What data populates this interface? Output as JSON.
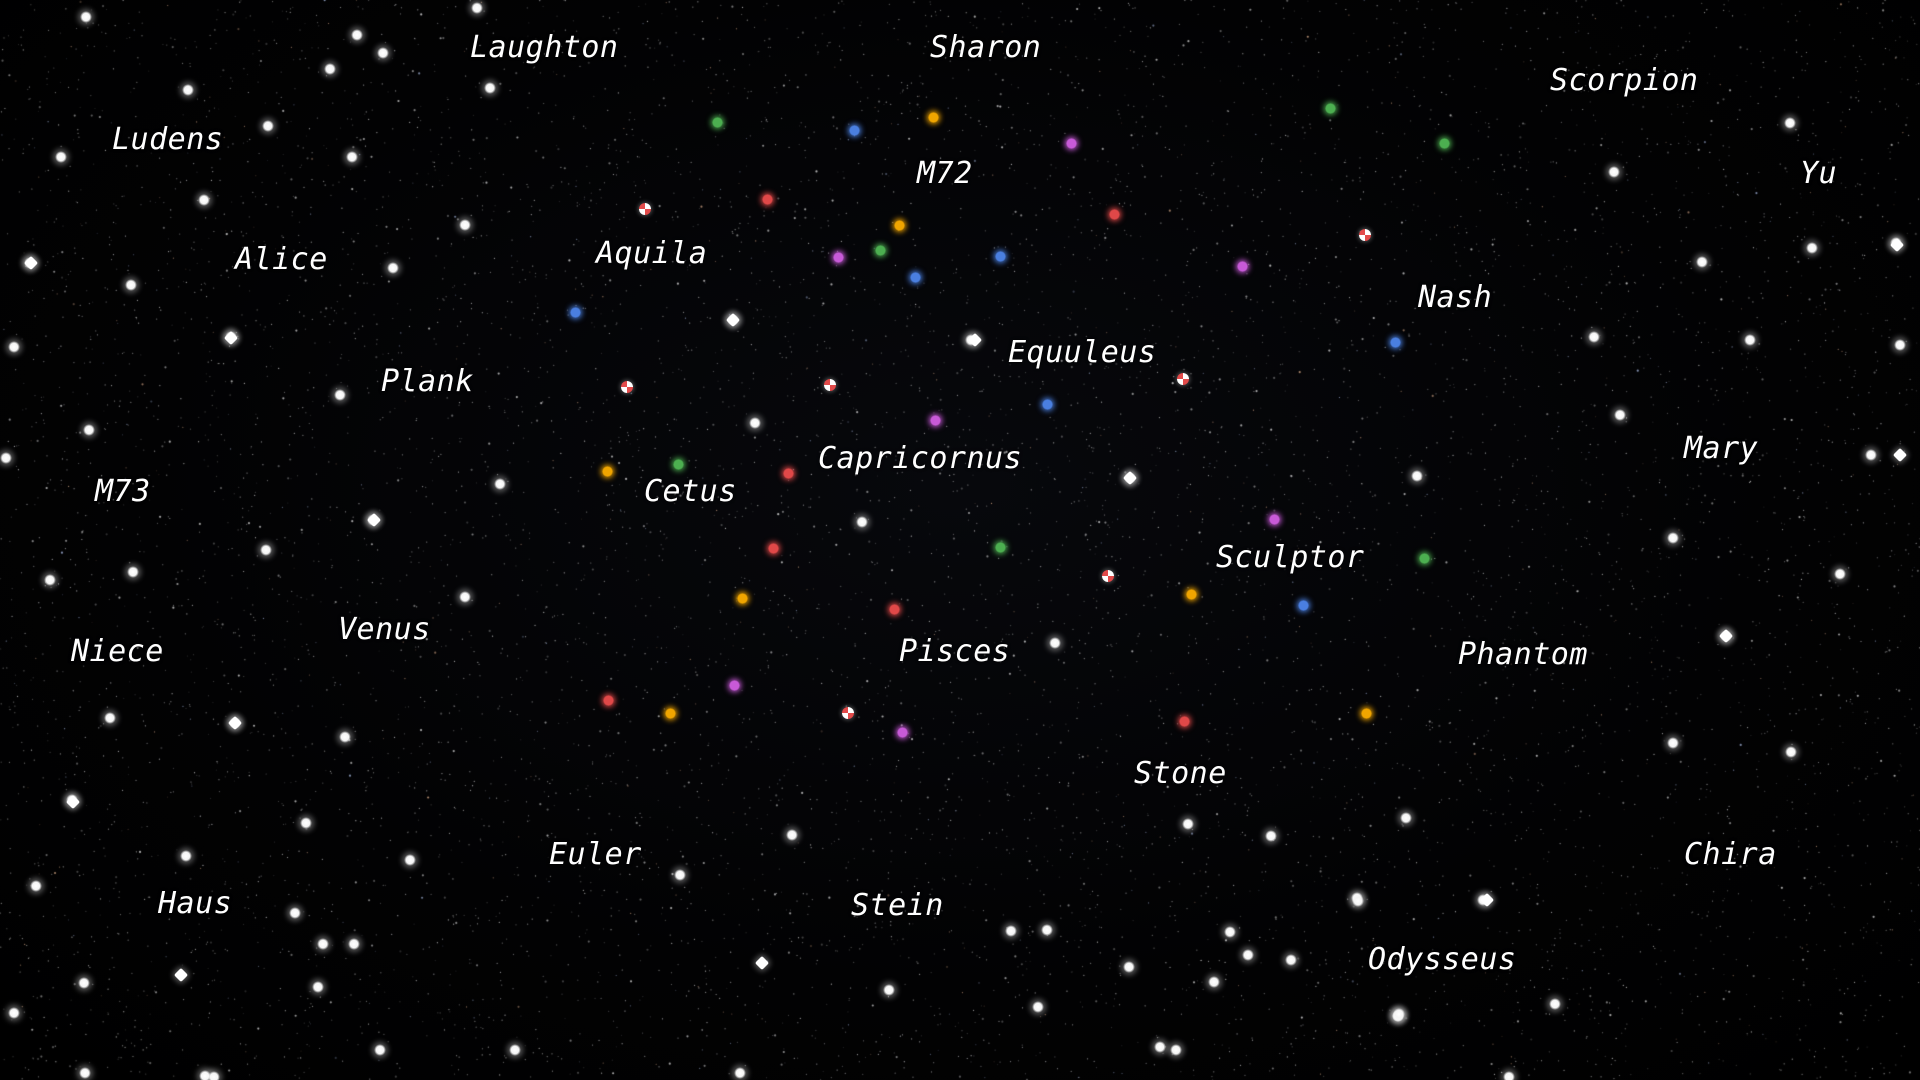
{
  "constellations": [
    "Laughton",
    "Sharon",
    "Scorpion",
    "Ludens",
    "M72",
    "Yu",
    "Alice",
    "Aquila",
    "Nash",
    "Equuleus",
    "Plank",
    "Mary",
    "Capricornus",
    "M73",
    "Cetus",
    "Sculptor",
    "Venus",
    "Niece",
    "Pisces",
    "Phantom",
    "Stone",
    "Euler",
    "Chira",
    "Haus",
    "Stein",
    "Odysseus"
  ],
  "colors": {
    "background": "#000000",
    "label_text": "#ffffff",
    "star_white": "#ffffff",
    "dot_green": "#4caf50",
    "dot_blue": "#4a7fe0",
    "dot_orange": "#f0a500",
    "dot_magenta": "#c85ad8",
    "dot_red": "#e04848"
  }
}
